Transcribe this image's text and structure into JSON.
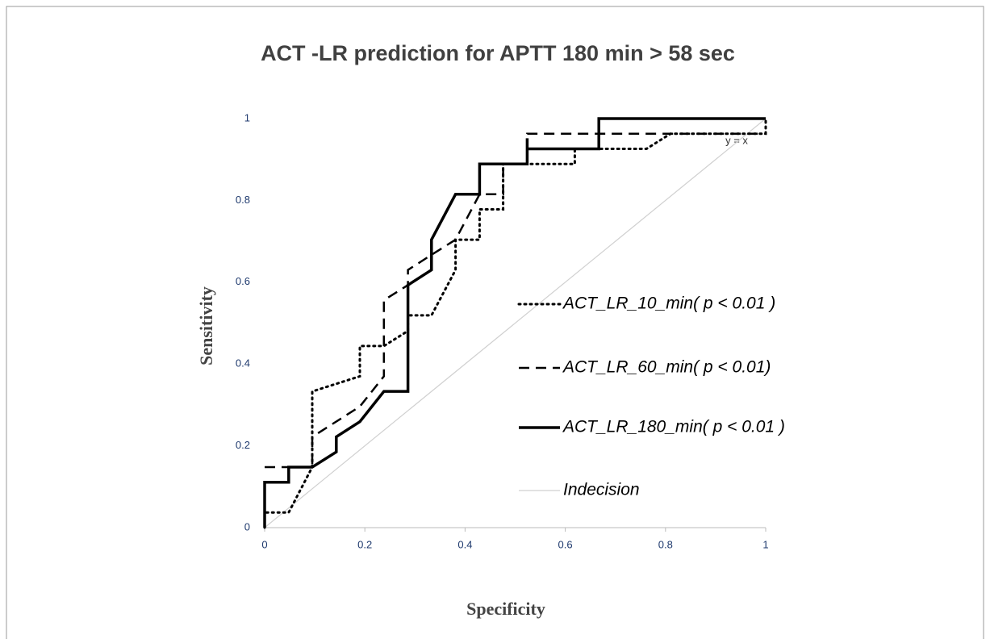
{
  "chart_data": {
    "type": "line",
    "title": "ACT -LR prediction for APTT 180 min > 58 sec",
    "x_label": "Specificity",
    "y_label": "Sensitivity",
    "annotation": "y = x",
    "xlim": [
      0,
      1
    ],
    "ylim": [
      0,
      1
    ],
    "xticks": [
      0,
      0.2,
      0.4,
      0.6,
      0.8,
      1
    ],
    "yticks": [
      0,
      0.2,
      0.4,
      0.6,
      0.8,
      1
    ],
    "grid": false,
    "series": [
      {
        "name": "ACT_LR_10_min( p < 0.01 )",
        "color": "#000000",
        "line_style": "dotted",
        "x": [
          0,
          0,
          0.048,
          0.095,
          0.095,
          0.19,
          0.19,
          0.238,
          0.286,
          0.286,
          0.333,
          0.381,
          0.381,
          0.429,
          0.429,
          0.476,
          0.476,
          0.619,
          0.619,
          0.762,
          0.81,
          1,
          1
        ],
        "values": [
          0,
          0.037,
          0.037,
          0.148,
          0.333,
          0.37,
          0.444,
          0.444,
          0.481,
          0.519,
          0.519,
          0.63,
          0.704,
          0.704,
          0.778,
          0.778,
          0.889,
          0.889,
          0.926,
          0.926,
          0.963,
          0.963,
          1
        ]
      },
      {
        "name": "ACT_LR_60_min( p < 0.01)",
        "color": "#000000",
        "line_style": "dashed",
        "x": [
          0,
          0.095,
          0.095,
          0.19,
          0.238,
          0.238,
          0.286,
          0.286,
          0.333,
          0.381,
          0.429,
          0.476,
          0.476,
          0.524,
          0.524,
          0.81,
          0.81,
          1
        ],
        "values": [
          0.148,
          0.148,
          0.222,
          0.296,
          0.37,
          0.556,
          0.593,
          0.63,
          0.667,
          0.704,
          0.815,
          0.815,
          0.889,
          0.889,
          0.963,
          0.963,
          0.963,
          0.963
        ]
      },
      {
        "name": "ACT_LR_180_min( p < 0.01 )",
        "color": "#000000",
        "line_style": "solid",
        "x": [
          0,
          0,
          0.048,
          0.048,
          0.095,
          0.143,
          0.143,
          0.19,
          0.238,
          0.286,
          0.286,
          0.333,
          0.333,
          0.381,
          0.429,
          0.429,
          0.524,
          0.524,
          0.524,
          0.667,
          0.667,
          1
        ],
        "values": [
          0,
          0.111,
          0.111,
          0.148,
          0.148,
          0.185,
          0.222,
          0.259,
          0.333,
          0.333,
          0.593,
          0.63,
          0.704,
          0.815,
          0.815,
          0.889,
          0.889,
          0.952,
          0.926,
          0.926,
          1,
          1
        ]
      },
      {
        "name": "Indecision",
        "color": "#d0d0d0",
        "line_style": "thin",
        "x": [
          0,
          1
        ],
        "values": [
          0,
          1
        ]
      }
    ]
  }
}
